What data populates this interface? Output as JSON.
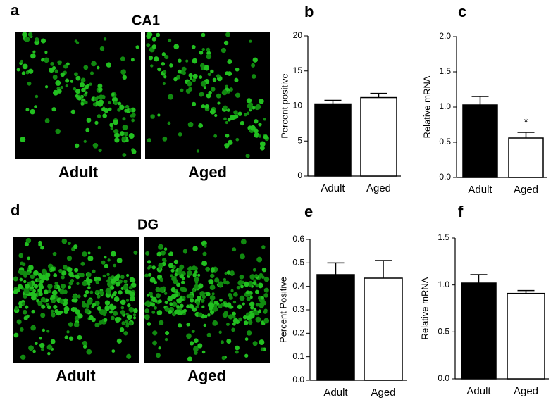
{
  "panels": [
    {
      "letter": "a",
      "title": "CA1",
      "images": [
        "Adult",
        "Aged"
      ]
    },
    {
      "letter": "d",
      "title": "DG",
      "images": [
        "Adult",
        "Aged"
      ]
    }
  ],
  "chart_data": [
    {
      "type": "bar",
      "letter": "b",
      "ylabel": "Percent positive",
      "categories": [
        "Adult",
        "Aged"
      ],
      "values": [
        10.3,
        11.2
      ],
      "errors": [
        0.5,
        0.6
      ],
      "colors": [
        "#000000",
        "#ffffff"
      ],
      "ylim": [
        0,
        20
      ],
      "yticks": [
        0,
        5,
        10,
        15,
        20
      ]
    },
    {
      "type": "bar",
      "letter": "c",
      "ylabel": "Relative mRNA",
      "categories": [
        "Adult",
        "Aged"
      ],
      "values": [
        1.03,
        0.56
      ],
      "errors": [
        0.12,
        0.08
      ],
      "colors": [
        "#000000",
        "#ffffff"
      ],
      "annotation": "*",
      "ylim": [
        0,
        2
      ],
      "yticks": [
        {
          "value": 0,
          "label": "0.0"
        },
        0.5,
        {
          "value": 1,
          "label": "1.0"
        },
        1.5,
        {
          "value": 2,
          "label": "2.0"
        }
      ]
    },
    {
      "type": "bar",
      "letter": "e",
      "ylabel": "Percent Positive",
      "categories": [
        "Adult",
        "Aged"
      ],
      "values": [
        0.45,
        0.435
      ],
      "errors": [
        0.05,
        0.075
      ],
      "colors": [
        "#000000",
        "#ffffff"
      ],
      "ylim": [
        0,
        0.6
      ],
      "yticks": [
        {
          "value": 0,
          "label": "0.0"
        },
        0.1,
        0.2,
        0.3,
        0.4,
        0.5,
        0.6
      ]
    },
    {
      "type": "bar",
      "letter": "f",
      "ylabel": "Relative mRNA",
      "categories": [
        "Adult",
        "Aged"
      ],
      "values": [
        1.02,
        0.91
      ],
      "errors": [
        0.09,
        0.03
      ],
      "colors": [
        "#000000",
        "#ffffff"
      ],
      "ylim": [
        0,
        1.5
      ],
      "yticks": [
        {
          "value": 0,
          "label": "0.0"
        },
        0.5,
        {
          "value": 1,
          "label": "1.0"
        },
        1.5
      ]
    }
  ]
}
